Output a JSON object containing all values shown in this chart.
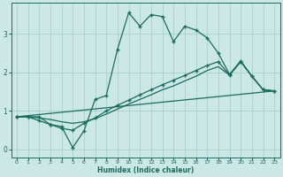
{
  "title": "",
  "xlabel": "Humidex (Indice chaleur)",
  "bg_color": "#cce8e5",
  "line_color": "#1a6b60",
  "grid_color": "#aacfcc",
  "xlim": [
    -0.5,
    23.5
  ],
  "ylim": [
    -0.2,
    3.8
  ],
  "xticks": [
    0,
    1,
    2,
    3,
    4,
    5,
    6,
    7,
    8,
    9,
    10,
    11,
    12,
    13,
    14,
    15,
    16,
    17,
    18,
    19,
    20,
    21,
    22,
    23
  ],
  "yticks": [
    0,
    1,
    2,
    3
  ],
  "line1_x": [
    0,
    1,
    2,
    3,
    4,
    5,
    6,
    7,
    8,
    9,
    10,
    11,
    12,
    13,
    14,
    15,
    16,
    17,
    18,
    19,
    20,
    21,
    22,
    23
  ],
  "line1_y": [
    0.85,
    0.85,
    0.85,
    0.65,
    0.6,
    0.05,
    0.48,
    1.3,
    1.4,
    2.6,
    3.55,
    3.2,
    3.5,
    3.45,
    2.8,
    3.2,
    3.1,
    2.9,
    2.5,
    1.95,
    2.3,
    1.9,
    1.55,
    1.52
  ],
  "line2_x": [
    0,
    1,
    2,
    3,
    4,
    5,
    6,
    7,
    8,
    9,
    10,
    11,
    12,
    13,
    14,
    15,
    16,
    17,
    18,
    19,
    20,
    21,
    22,
    23
  ],
  "line2_y": [
    0.85,
    0.85,
    0.75,
    0.65,
    0.55,
    0.5,
    0.68,
    0.82,
    1.0,
    1.15,
    1.28,
    1.42,
    1.55,
    1.68,
    1.8,
    1.92,
    2.05,
    2.18,
    2.28,
    1.93,
    2.28,
    1.9,
    1.55,
    1.52
  ],
  "line3_x": [
    0,
    23
  ],
  "line3_y": [
    0.85,
    1.52
  ],
  "line4_x": [
    0,
    1,
    2,
    3,
    4,
    5,
    6,
    7,
    8,
    9,
    10,
    11,
    12,
    13,
    14,
    15,
    16,
    17,
    18,
    19,
    20,
    21,
    22,
    23
  ],
  "line4_y": [
    0.85,
    0.85,
    0.82,
    0.78,
    0.72,
    0.68,
    0.72,
    0.8,
    0.92,
    1.05,
    1.18,
    1.3,
    1.42,
    1.55,
    1.65,
    1.78,
    1.9,
    2.05,
    2.15,
    1.93,
    2.28,
    1.9,
    1.55,
    1.52
  ],
  "markersize": 3.5,
  "linewidth": 0.9
}
